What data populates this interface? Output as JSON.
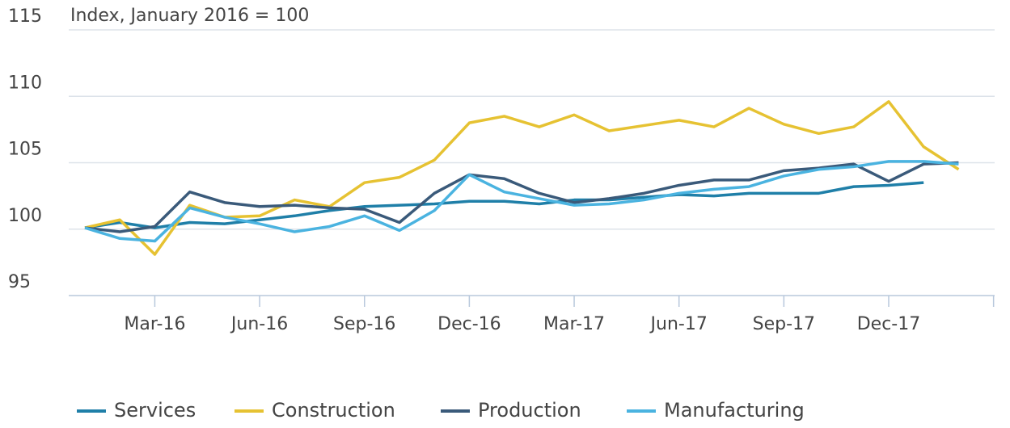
{
  "chart_data": {
    "type": "line",
    "y_label": "Index, January 2016 = 100",
    "categories": [
      null,
      null,
      "Mar-16",
      null,
      null,
      "Jun-16",
      null,
      null,
      "Sep-16",
      null,
      null,
      "Dec-16",
      null,
      null,
      "Mar-17",
      null,
      null,
      "Jun-17",
      null,
      null,
      "Sep-17",
      null,
      null,
      "Dec-17",
      null,
      null
    ],
    "series": [
      {
        "name": "Services",
        "color": "#1f7fa8",
        "values": [
          100.1,
          100.5,
          100.1,
          100.5,
          100.4,
          100.7,
          101.0,
          101.4,
          101.7,
          101.8,
          101.9,
          102.1,
          102.1,
          101.9,
          102.2,
          102.2,
          102.4,
          102.6,
          102.5,
          102.7,
          102.7,
          102.7,
          103.2,
          103.3,
          103.5,
          null
        ]
      },
      {
        "name": "Construction",
        "color": "#e6c232",
        "values": [
          100.1,
          100.7,
          98.1,
          101.8,
          100.9,
          101.0,
          102.2,
          101.7,
          103.5,
          103.9,
          105.2,
          108.0,
          108.5,
          107.7,
          108.6,
          107.4,
          107.8,
          108.2,
          107.7,
          109.1,
          107.9,
          107.2,
          107.7,
          109.6,
          106.2,
          104.5
        ]
      },
      {
        "name": "Production",
        "color": "#3a5a7a",
        "values": [
          100.1,
          99.8,
          100.2,
          102.8,
          102.0,
          101.7,
          101.8,
          101.6,
          101.5,
          100.5,
          102.7,
          104.1,
          103.8,
          102.7,
          102.0,
          102.3,
          102.7,
          103.3,
          103.7,
          103.7,
          104.4,
          104.6,
          104.9,
          103.6,
          104.9,
          105.0
        ]
      },
      {
        "name": "Manufacturing",
        "color": "#4ab3e0",
        "values": [
          100.1,
          99.3,
          99.1,
          101.6,
          100.9,
          100.4,
          99.8,
          100.2,
          101.0,
          99.9,
          101.4,
          104.1,
          102.8,
          102.3,
          101.8,
          101.9,
          102.2,
          102.7,
          103.0,
          103.2,
          104.0,
          104.5,
          104.7,
          105.1,
          105.1,
          104.9
        ]
      }
    ],
    "ylim": [
      95,
      115
    ],
    "yticks": [
      95,
      100,
      105,
      110,
      115
    ],
    "grid": true,
    "legend": "bottom"
  }
}
